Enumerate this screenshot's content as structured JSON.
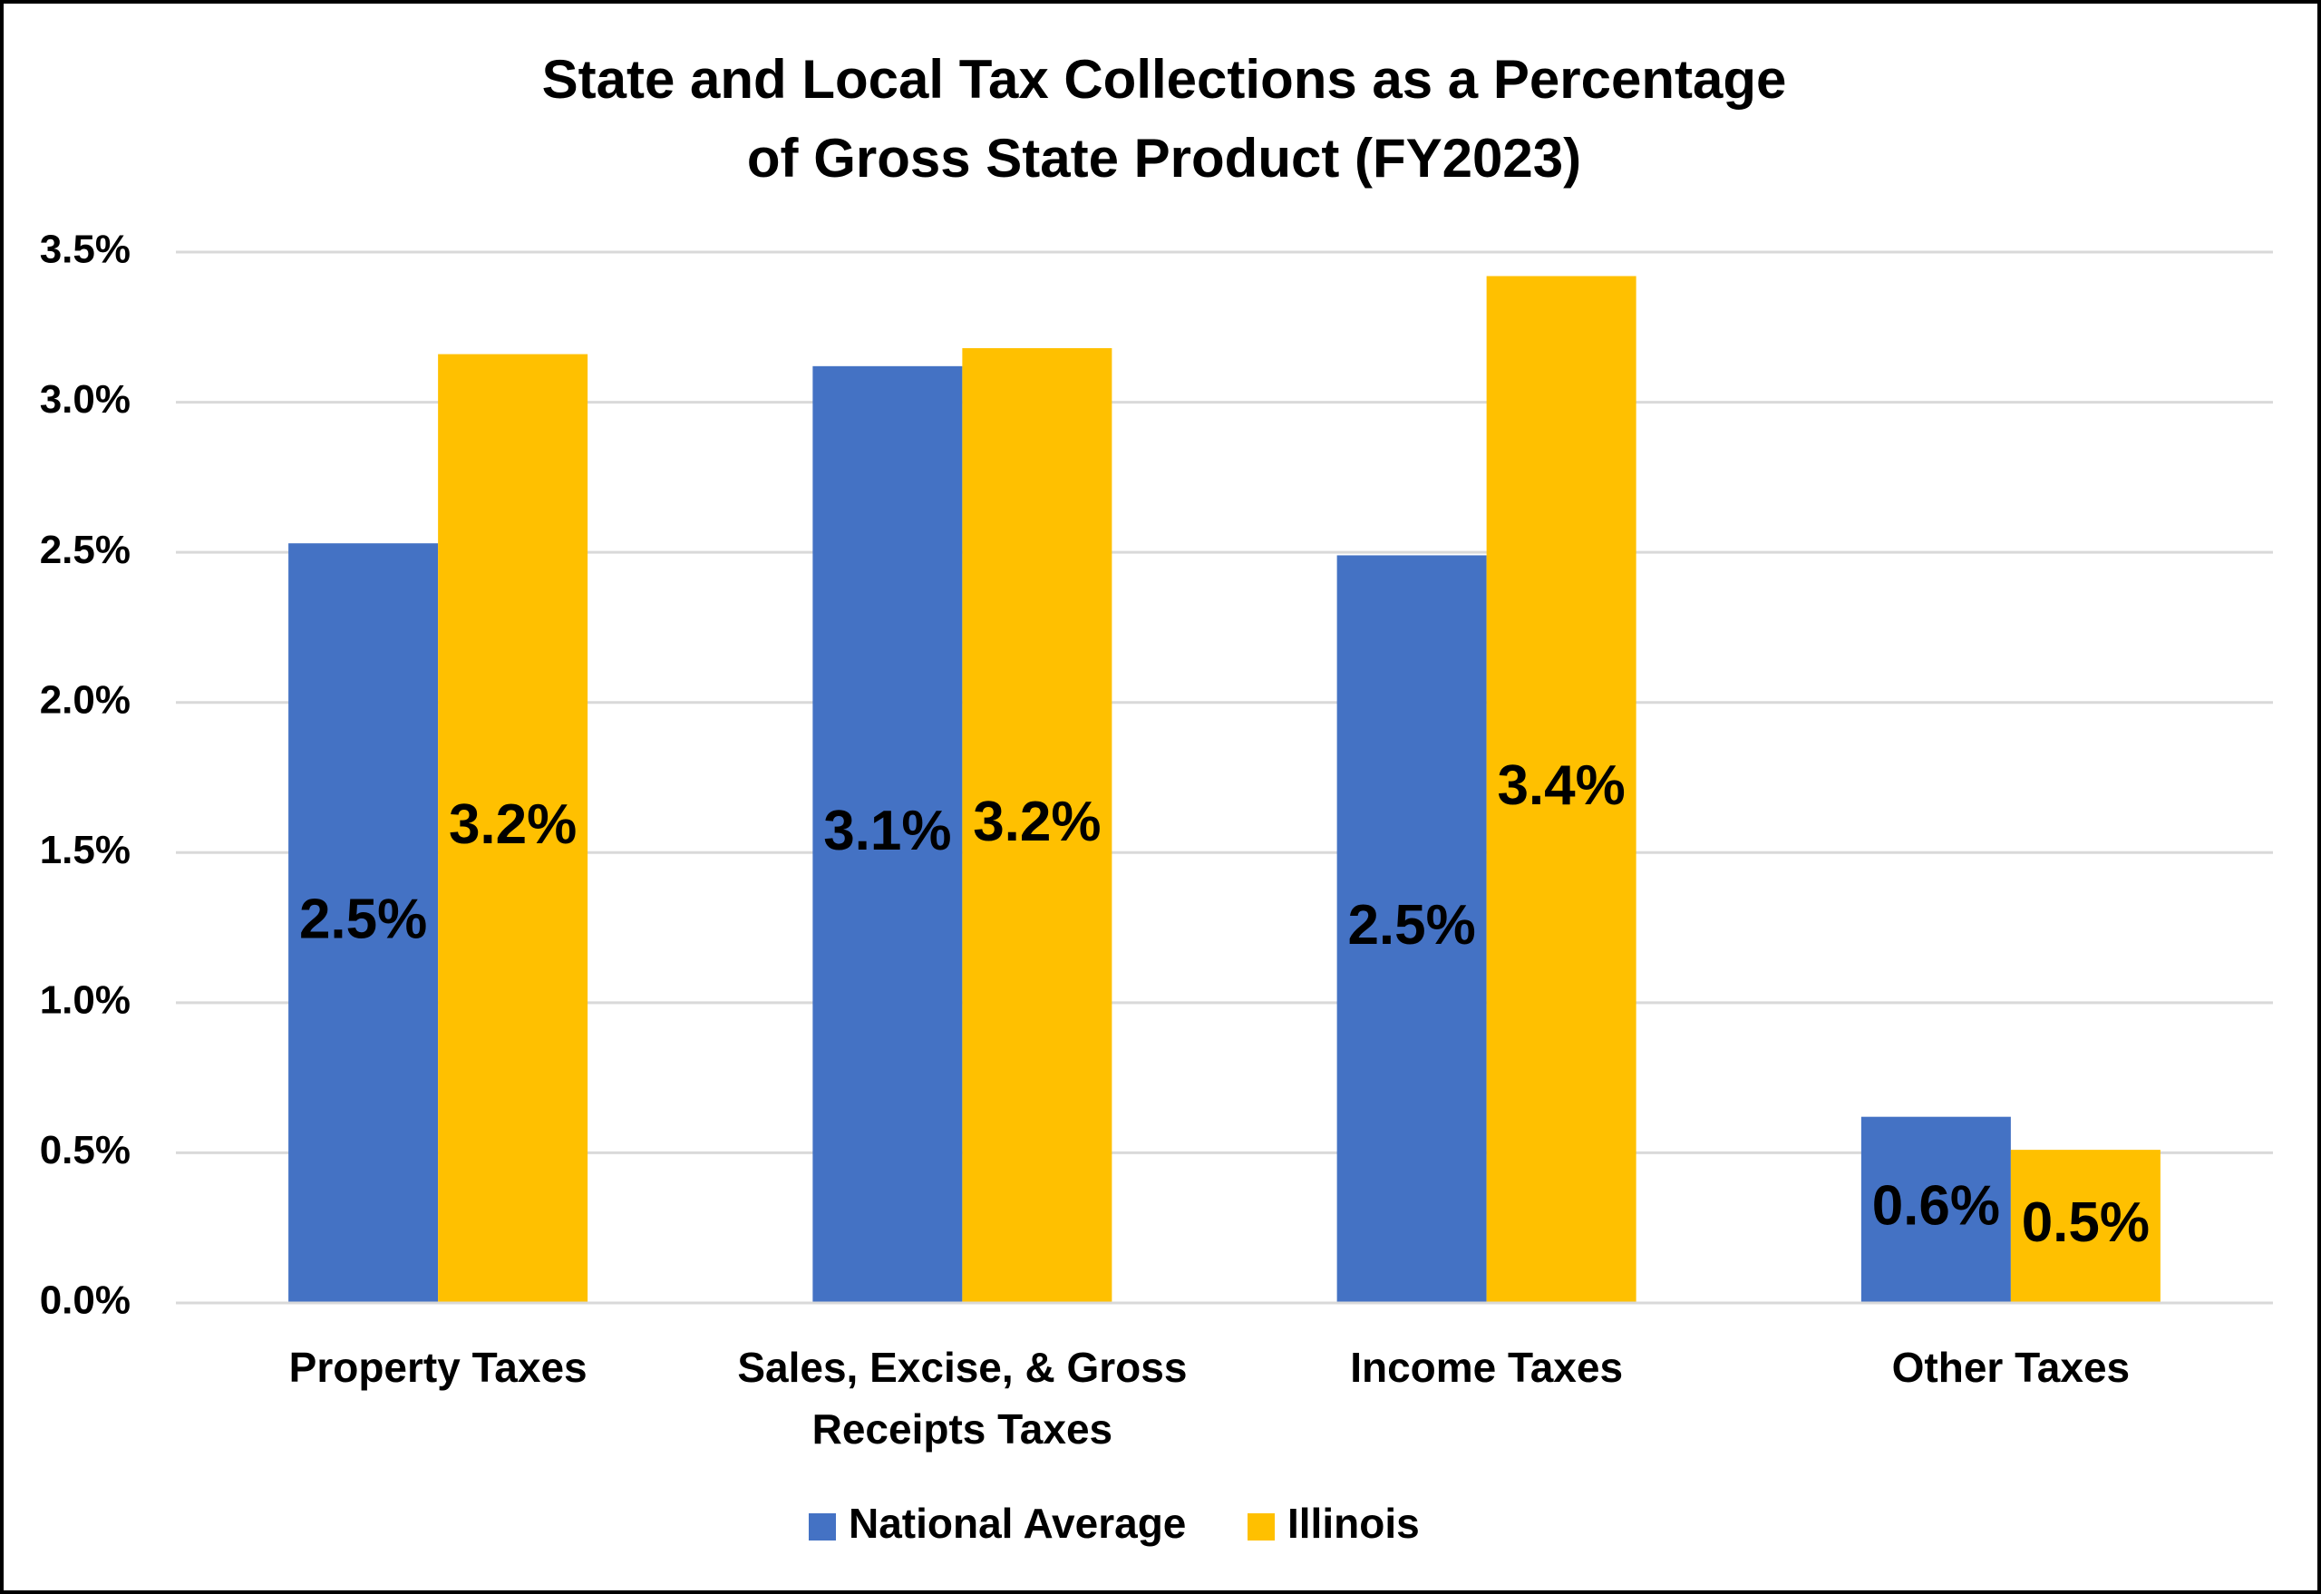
{
  "chart_data": {
    "type": "bar",
    "title": "State and Local Tax Collections as a Percentage of Gross State Product (FY2023)",
    "categories": [
      "Property Taxes",
      "Sales, Excise, & Gross Receipts Taxes",
      "Income Taxes",
      "Other Taxes"
    ],
    "series": [
      {
        "name": "National Average",
        "color": "#4472c4",
        "values": [
          2.53,
          3.12,
          2.49,
          0.62
        ],
        "value_labels": [
          "2.5%",
          "3.1%",
          "2.5%",
          "0.6%"
        ]
      },
      {
        "name": "Illinois",
        "color": "#ffc000",
        "values": [
          3.16,
          3.18,
          3.42,
          0.51
        ],
        "value_labels": [
          "3.2%",
          "3.2%",
          "3.4%",
          "0.5%"
        ]
      }
    ],
    "ylim": [
      0,
      3.5
    ],
    "yticks": [
      {
        "value": 0,
        "label": "0.0%"
      },
      {
        "value": 0.5,
        "label": "0.5%"
      },
      {
        "value": 1,
        "label": "1.0%"
      },
      {
        "value": 1.5,
        "label": "1.5%"
      },
      {
        "value": 2,
        "label": "2.0%"
      },
      {
        "value": 2.5,
        "label": "2.5%"
      },
      {
        "value": 3,
        "label": "3.0%"
      },
      {
        "value": 3.5,
        "label": "3.5%"
      }
    ],
    "grid": true,
    "legend": "bottom"
  }
}
